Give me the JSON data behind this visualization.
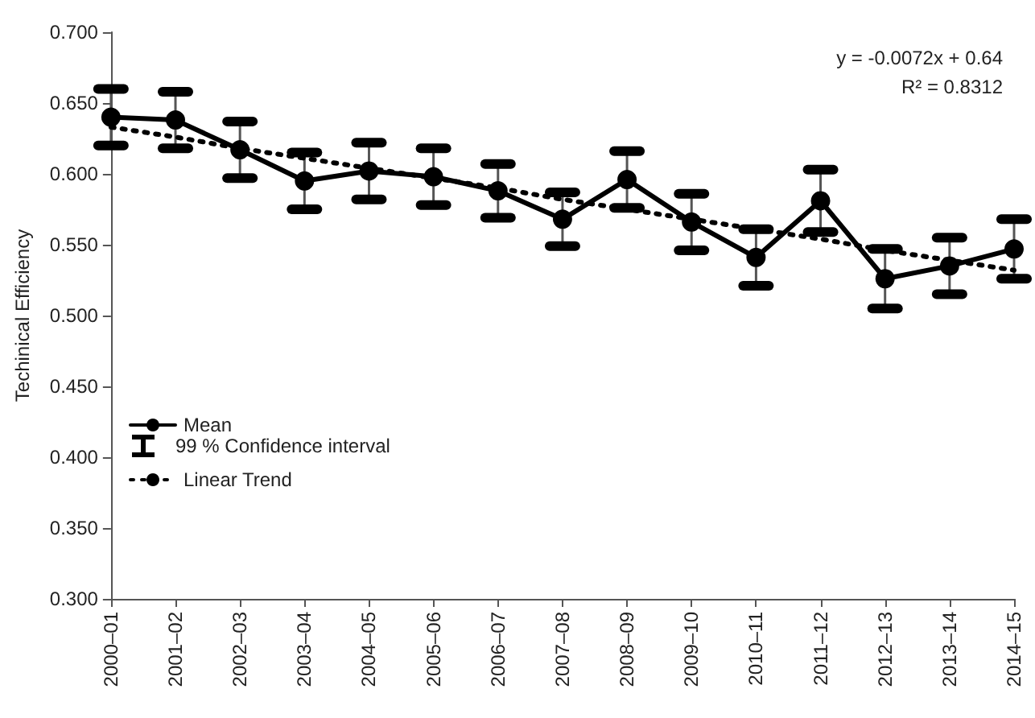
{
  "chart_data": {
    "type": "line",
    "ylabel": "Techinical Efficiency",
    "categories": [
      "2000–01",
      "2001–02",
      "2002–03",
      "2003–04",
      "2004–05",
      "2005–06",
      "2006–07",
      "2007–08",
      "2008–09",
      "2009–10",
      "2010–11",
      "2011–12",
      "2012–13",
      "2013–14",
      "2014–15"
    ],
    "series": [
      {
        "name": "Mean",
        "color": "#000000",
        "marker": "circle",
        "line_style": "solid",
        "values": [
          0.64,
          0.638,
          0.617,
          0.595,
          0.602,
          0.598,
          0.588,
          0.568,
          0.596,
          0.566,
          0.541,
          0.581,
          0.526,
          0.535,
          0.547
        ],
        "errors": [
          0.02,
          0.02,
          0.02,
          0.02,
          0.02,
          0.02,
          0.019,
          0.019,
          0.02,
          0.02,
          0.02,
          0.022,
          0.021,
          0.02,
          0.021
        ]
      },
      {
        "name": "Linear Trend",
        "color": "#000000",
        "marker": "none",
        "line_style": "dotted",
        "values": [
          0.633,
          0.626,
          0.618,
          0.611,
          0.604,
          0.597,
          0.59,
          0.582,
          0.575,
          0.568,
          0.561,
          0.554,
          0.546,
          0.539,
          0.532
        ]
      }
    ],
    "ylim": [
      0.3,
      0.7
    ],
    "yticks": [
      {
        "value": 0.3,
        "label": "0.300"
      },
      {
        "value": 0.35,
        "label": "0.350"
      },
      {
        "value": 0.4,
        "label": "0.400"
      },
      {
        "value": 0.45,
        "label": "0.450"
      },
      {
        "value": 0.5,
        "label": "0.500"
      },
      {
        "value": 0.55,
        "label": "0.550"
      },
      {
        "value": 0.6,
        "label": "0.600"
      },
      {
        "value": 0.65,
        "label": "0.650"
      },
      {
        "value": 0.7,
        "label": "0.700"
      }
    ],
    "annotations": [
      "y = -0.0072x + 0.64",
      "R² = 0.8312",
      "99 % Confidence interval"
    ],
    "grid": false,
    "legend": "bottom left"
  }
}
